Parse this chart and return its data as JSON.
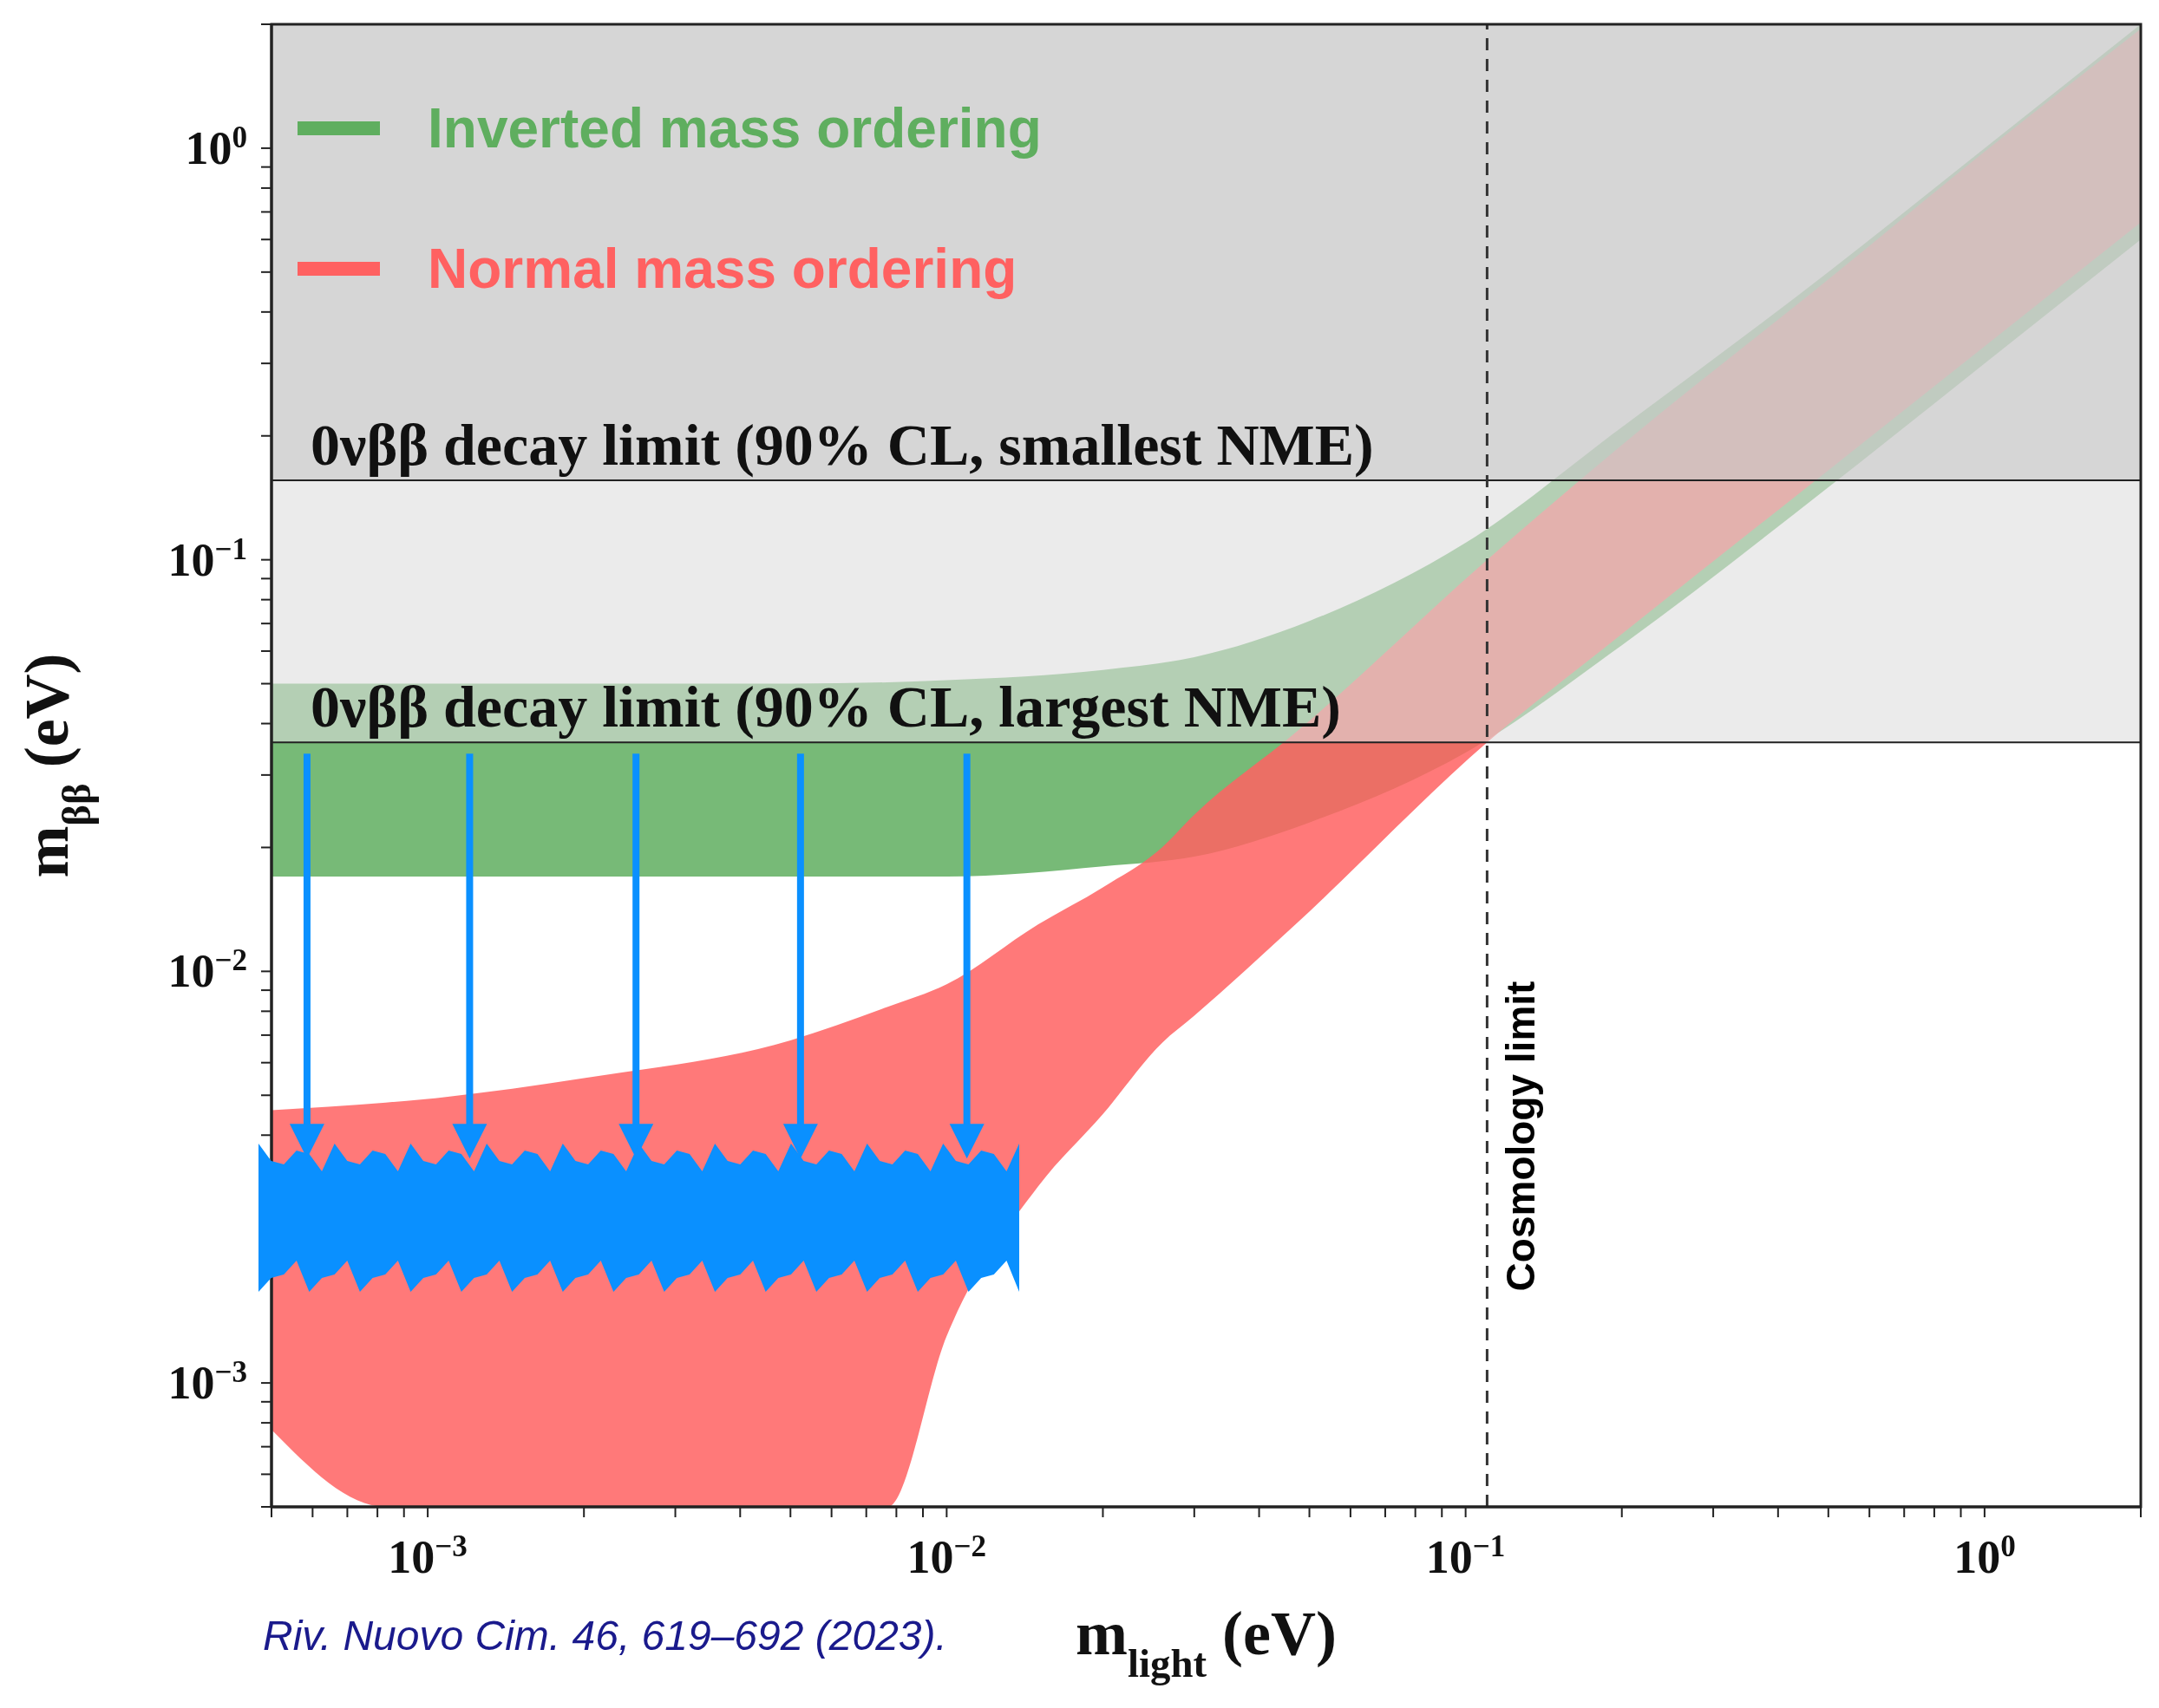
{
  "chart_data": {
    "type": "area",
    "xlabel": "m$_{light}$ (eV)",
    "ylabel": "m$_{ββ}$ (eV)",
    "log": "xy",
    "legend": "top left",
    "xlim": [
      0.0005,
      2
    ],
    "ylim": [
      0.0005,
      2
    ],
    "xticks": [
      {
        "value": 0.0005,
        "label": null
      },
      {
        "value": 0.0006,
        "label": null
      },
      {
        "value": 0.0007,
        "label": null
      },
      {
        "value": 0.0008,
        "label": null
      },
      {
        "value": 0.0009,
        "label": null
      },
      {
        "value": 0.001,
        "label": "10$^{−3}$"
      },
      {
        "value": 0.002,
        "label": null
      },
      {
        "value": 0.003,
        "label": null
      },
      {
        "value": 0.004,
        "label": null
      },
      {
        "value": 0.005,
        "label": null
      },
      {
        "value": 0.006,
        "label": null
      },
      {
        "value": 0.007,
        "label": null
      },
      {
        "value": 0.008,
        "label": null
      },
      {
        "value": 0.009,
        "label": null
      },
      {
        "value": 0.01,
        "label": "10$^{−2}$"
      },
      {
        "value": 0.02,
        "label": null
      },
      {
        "value": 0.03,
        "label": null
      },
      {
        "value": 0.04,
        "label": null
      },
      {
        "value": 0.05,
        "label": null
      },
      {
        "value": 0.06,
        "label": null
      },
      {
        "value": 0.07,
        "label": null
      },
      {
        "value": 0.08,
        "label": null
      },
      {
        "value": 0.09,
        "label": null
      },
      {
        "value": 0.1,
        "label": "10$^{−1}$"
      },
      {
        "value": 0.2,
        "label": null
      },
      {
        "value": 0.3,
        "label": null
      },
      {
        "value": 0.4,
        "label": null
      },
      {
        "value": 0.5,
        "label": null
      },
      {
        "value": 0.6,
        "label": null
      },
      {
        "value": 0.7,
        "label": null
      },
      {
        "value": 0.8,
        "label": null
      },
      {
        "value": 0.9,
        "label": null
      },
      {
        "value": 1,
        "label": "10$^{0}$"
      },
      {
        "value": 2,
        "label": null
      }
    ],
    "yticks": [
      {
        "value": 0.0005,
        "label": null
      },
      {
        "value": 0.0006,
        "label": null
      },
      {
        "value": 0.0007,
        "label": null
      },
      {
        "value": 0.0008,
        "label": null
      },
      {
        "value": 0.0009,
        "label": null
      },
      {
        "value": 0.001,
        "label": "10$^{−3}$"
      },
      {
        "value": 0.002,
        "label": null
      },
      {
        "value": 0.003,
        "label": null
      },
      {
        "value": 0.004,
        "label": null
      },
      {
        "value": 0.005,
        "label": null
      },
      {
        "value": 0.006,
        "label": null
      },
      {
        "value": 0.007,
        "label": null
      },
      {
        "value": 0.008,
        "label": null
      },
      {
        "value": 0.009,
        "label": null
      },
      {
        "value": 0.01,
        "label": "10$^{−2}$"
      },
      {
        "value": 0.02,
        "label": null
      },
      {
        "value": 0.03,
        "label": null
      },
      {
        "value": 0.04,
        "label": null
      },
      {
        "value": 0.05,
        "label": null
      },
      {
        "value": 0.06,
        "label": null
      },
      {
        "value": 0.07,
        "label": null
      },
      {
        "value": 0.08,
        "label": null
      },
      {
        "value": 0.09,
        "label": null
      },
      {
        "value": 0.1,
        "label": "10$^{−1}$"
      },
      {
        "value": 0.2,
        "label": null
      },
      {
        "value": 0.3,
        "label": null
      },
      {
        "value": 0.4,
        "label": null
      },
      {
        "value": 0.5,
        "label": null
      },
      {
        "value": 0.6,
        "label": null
      },
      {
        "value": 0.7,
        "label": null
      },
      {
        "value": 0.8,
        "label": null
      },
      {
        "value": 0.9,
        "label": null
      },
      {
        "value": 1,
        "label": "10$^{0}$"
      },
      {
        "value": 2,
        "label": null
      }
    ],
    "series": [
      {
        "name": "Inverted mass ordering",
        "color": "#5fae5f",
        "x": [
          0.0005,
          0.001,
          0.002,
          0.005,
          0.01,
          0.02,
          0.03,
          0.05,
          0.1,
          0.2,
          0.5,
          1,
          2
        ],
        "values": [
          null,
          null,
          null,
          null,
          null,
          null,
          null,
          null,
          null,
          null,
          null,
          null,
          null
        ],
        "upper": [
          0.05,
          0.05,
          0.05,
          0.05,
          0.051,
          0.054,
          0.058,
          0.071,
          0.11,
          0.21,
          0.5,
          1,
          2
        ],
        "lower": [
          0.017,
          0.017,
          0.017,
          0.017,
          0.017,
          0.018,
          0.019,
          0.023,
          0.034,
          0.062,
          0.15,
          0.3,
          0.6
        ]
      },
      {
        "name": "Normal mass ordering",
        "color": "#ff6161",
        "x": [
          0.0005,
          0.00083,
          0.001,
          0.002,
          0.005,
          0.0077,
          0.01,
          0.015,
          0.02,
          0.026,
          0.03,
          0.047,
          0.11,
          0.2,
          0.5,
          1,
          2
        ],
        "values": [
          null,
          null,
          null,
          null,
          null,
          null,
          null,
          null,
          null,
          null,
          null,
          null,
          null,
          null,
          null,
          null,
          null
        ],
        "upper": [
          0.0046,
          0.0048,
          0.0049,
          0.0055,
          0.0068,
          0.0082,
          0.0093,
          0.013,
          0.016,
          0.02,
          0.024,
          0.038,
          0.1,
          0.19,
          0.48,
          0.98,
          1.95
        ],
        "lower": [
          0.00077,
          0.0005,
          0.0005,
          0.0005,
          0.0005,
          0.0005,
          0.0013,
          0.003,
          0.0045,
          0.0067,
          0.0078,
          0.013,
          0.036,
          0.066,
          0.165,
          0.33,
          0.66
        ]
      }
    ],
    "bands": [
      {
        "axis": "y",
        "from": 0.036,
        "to": 2,
        "label": "0νββ decay limit (90% CL, largest NME)",
        "color": "#dedede"
      },
      {
        "axis": "y",
        "from": 0.156,
        "to": 2,
        "label": "0νββ decay limit (90% CL, smallest NME)",
        "color": "#c8c8c8"
      }
    ],
    "ref_lines": [
      {
        "axis": "x",
        "value": 0.11,
        "label": "Cosmology limit",
        "color": "#333333",
        "line_style": "dashed"
      }
    ],
    "annotations": [
      "Riv. Nuovo Cim. 46, 619–692 (2023)."
    ]
  }
}
